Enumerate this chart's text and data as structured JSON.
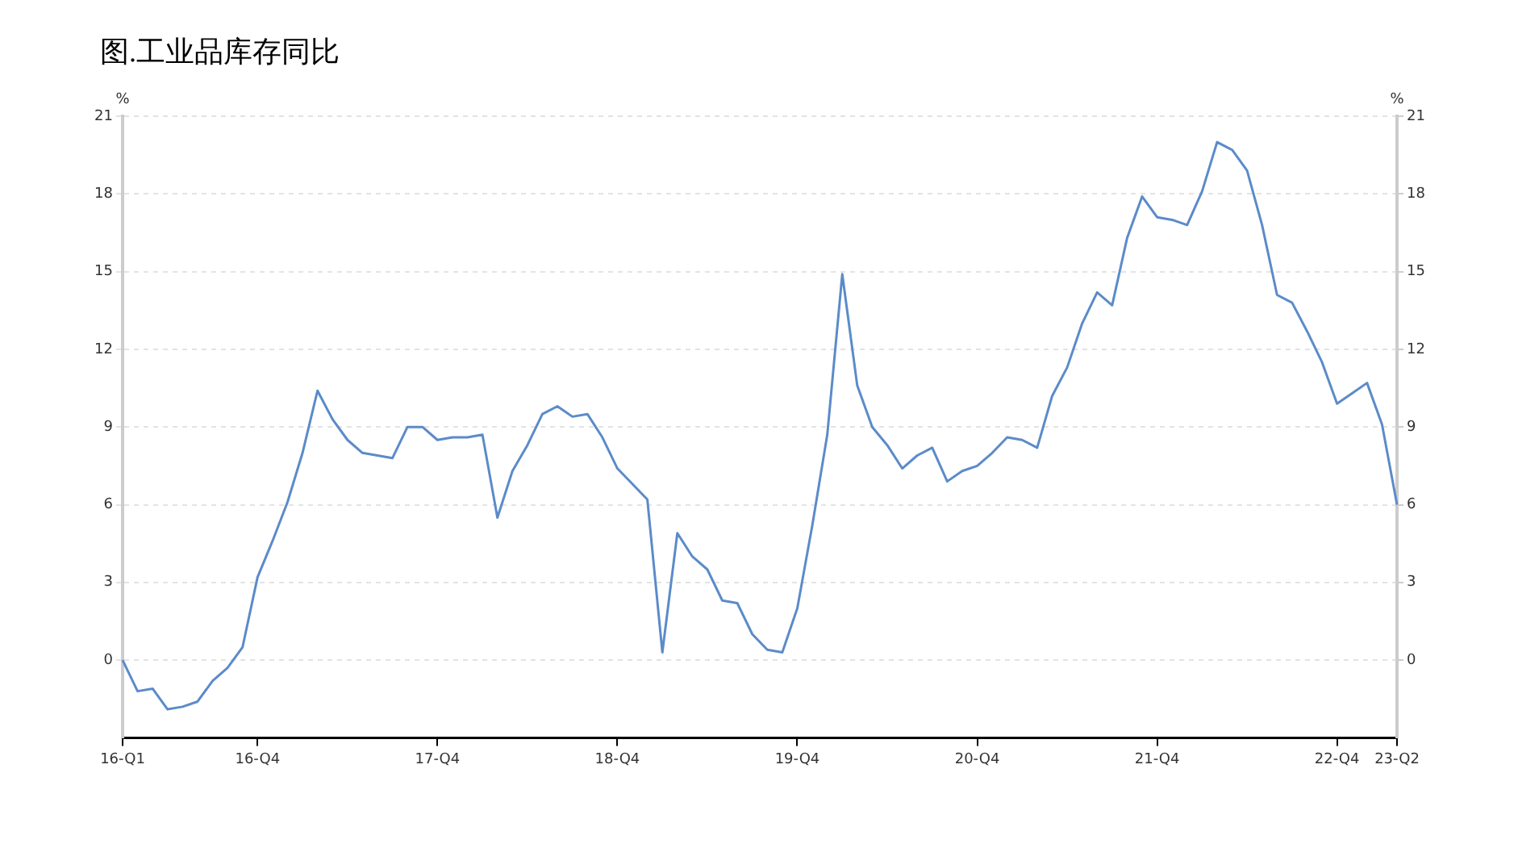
{
  "chart_data": {
    "type": "line",
    "title": "图.工业品库存同比",
    "ylabel": "%",
    "y2label": "%",
    "categories": [
      "16-Q1",
      null,
      null,
      null,
      null,
      null,
      null,
      null,
      null,
      "16-Q4",
      null,
      null,
      null,
      null,
      null,
      null,
      null,
      null,
      null,
      null,
      null,
      "17-Q4",
      null,
      null,
      null,
      null,
      null,
      null,
      null,
      null,
      null,
      null,
      null,
      "18-Q4",
      null,
      null,
      null,
      null,
      null,
      null,
      null,
      null,
      null,
      null,
      null,
      "19-Q4",
      null,
      null,
      null,
      null,
      null,
      null,
      null,
      null,
      null,
      null,
      null,
      "20-Q4",
      null,
      null,
      null,
      null,
      null,
      null,
      null,
      null,
      null,
      null,
      null,
      "21-Q4",
      null,
      null,
      null,
      null,
      null,
      null,
      null,
      null,
      null,
      null,
      null,
      "22-Q4",
      null,
      null,
      null,
      "23-Q2"
    ],
    "series": [
      {
        "color": "#5b8bc9",
        "values": [
          0,
          -1.2,
          -1.1,
          -1.9,
          -1.8,
          -1.6,
          -0.8,
          -0.3,
          0.5,
          3.2,
          4.6,
          6.1,
          8.0,
          10.4,
          9.3,
          8.5,
          8.0,
          7.9,
          7.8,
          9.0,
          9.0,
          8.5,
          8.6,
          8.6,
          8.7,
          5.5,
          7.3,
          8.3,
          9.5,
          9.8,
          9.4,
          9.5,
          8.6,
          7.4,
          6.8,
          6.2,
          0.3,
          4.9,
          4.0,
          3.5,
          2.3,
          2.2,
          1.0,
          0.4,
          0.3,
          2.0,
          5.2,
          8.7,
          14.9,
          10.6,
          9.0,
          8.3,
          7.4,
          7.9,
          8.2,
          6.9,
          7.3,
          7.5,
          8.0,
          8.6,
          8.5,
          8.2,
          10.2,
          11.3,
          13.0,
          14.2,
          13.7,
          16.3,
          17.9,
          17.1,
          17.0,
          16.8,
          18.1,
          20.0,
          19.7,
          18.9,
          16.8,
          14.1,
          13.8,
          12.7,
          11.5,
          9.9,
          10.3,
          10.7,
          9.1,
          6.0
        ]
      }
    ],
    "ylim": [
      -3,
      21
    ],
    "yticks": [
      0,
      3,
      6,
      9,
      12,
      15,
      18,
      21
    ],
    "y2lim": [
      -3,
      21
    ],
    "y2ticks": [
      0,
      3,
      6,
      9,
      12,
      15,
      18,
      21
    ],
    "grid": "y",
    "legend": false,
    "marker": "none",
    "line_style": "solid"
  }
}
